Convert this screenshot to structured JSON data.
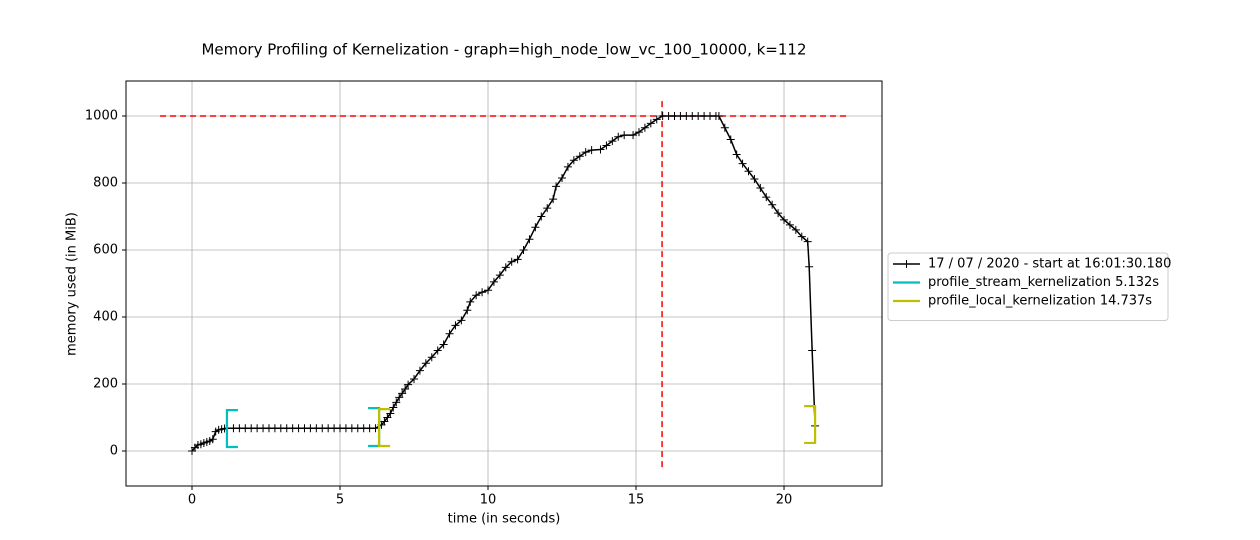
{
  "chart_data": {
    "type": "line",
    "title": "Memory Profiling of Kernelization - graph=high_node_low_vc_100_10000, k=112",
    "x_label": "time (in seconds)",
    "y_label": "memory used (in MiB)",
    "xlim": [
      -2.23,
      23.31
    ],
    "ylim": [
      -104.5,
      1104.5
    ],
    "xticks": [
      0,
      5,
      10,
      15,
      20
    ],
    "yticks": [
      0,
      200,
      400,
      600,
      800,
      1000
    ],
    "grid": true,
    "legend": "outside-right",
    "series": [
      {
        "name": "17 / 07 / 2020 - start at 16:01:30.180",
        "color": "#000000",
        "x": [
          0,
          0.1,
          0.2,
          0.3,
          0.4,
          0.5,
          0.6,
          0.7,
          0.8,
          0.9,
          1.0,
          1.1,
          1.2,
          1.4,
          1.6,
          1.8,
          2.0,
          2.2,
          2.4,
          2.6,
          2.8,
          3.0,
          3.2,
          3.4,
          3.6,
          3.8,
          4.0,
          4.2,
          4.4,
          4.6,
          4.8,
          5.0,
          5.2,
          5.4,
          5.6,
          5.8,
          6.0,
          6.2,
          6.4,
          6.5,
          6.6,
          6.7,
          6.8,
          6.9,
          7.0,
          7.1,
          7.2,
          7.3,
          7.5,
          7.7,
          7.9,
          8.1,
          8.3,
          8.5,
          8.7,
          8.9,
          9.1,
          9.3,
          9.4,
          9.6,
          9.8,
          10.0,
          10.2,
          10.4,
          10.6,
          10.8,
          11.0,
          11.2,
          11.4,
          11.6,
          11.8,
          12.0,
          12.2,
          12.3,
          12.5,
          12.7,
          12.9,
          13.1,
          13.3,
          13.5,
          13.8,
          14.0,
          14.2,
          14.4,
          14.6,
          14.9,
          15.1,
          15.3,
          15.5,
          15.7,
          15.9,
          16.1,
          16.3,
          16.5,
          16.7,
          16.9,
          17.1,
          17.3,
          17.5,
          17.7,
          17.8,
          18.0,
          18.2,
          18.4,
          18.6,
          18.8,
          19.0,
          19.2,
          19.4,
          19.6,
          19.8,
          20.0,
          20.2,
          20.4,
          20.6,
          20.8,
          20.85,
          20.95,
          21.05
        ],
        "values": [
          0,
          10,
          18,
          20,
          24,
          27,
          30,
          35,
          58,
          63,
          65,
          67,
          68,
          68,
          68,
          68,
          68,
          68,
          68,
          68,
          68,
          68,
          68,
          68,
          68,
          68,
          68,
          68,
          68,
          68,
          68,
          68,
          68,
          68,
          68,
          68,
          68,
          68,
          78,
          88,
          100,
          112,
          130,
          145,
          160,
          172,
          185,
          198,
          215,
          240,
          262,
          280,
          300,
          318,
          350,
          375,
          390,
          420,
          445,
          465,
          474,
          480,
          505,
          525,
          548,
          565,
          572,
          600,
          632,
          668,
          700,
          725,
          752,
          790,
          815,
          848,
          868,
          880,
          892,
          898,
          900,
          912,
          925,
          938,
          943,
          943,
          952,
          965,
          978,
          990,
          1000,
          1000,
          1000,
          1000,
          1000,
          1000,
          1000,
          1000,
          1000,
          1000,
          1000,
          965,
          930,
          885,
          858,
          835,
          812,
          785,
          758,
          735,
          710,
          690,
          675,
          660,
          640,
          625,
          550,
          300,
          75
        ]
      },
      {
        "name": "profile_stream_kernelization 5.132s",
        "color": "#00bfbf",
        "x": [
          1.18,
          6.32
        ],
        "low": [
          12,
          15
        ],
        "high": [
          122,
          128
        ]
      },
      {
        "name": "profile_local_kernelization 14.737s",
        "color": "#bfbf00",
        "x": [
          6.32,
          21.05
        ],
        "low": [
          15,
          24
        ],
        "high": [
          125,
          134
        ]
      }
    ],
    "hlines": [
      {
        "y": 1000,
        "xmin": -1.08,
        "xmax": 22.13,
        "color": "#ff0000"
      }
    ],
    "vlines": [
      {
        "x": 15.88,
        "ymin": -48,
        "ymax": 1050,
        "color": "#ff0000"
      }
    ]
  }
}
